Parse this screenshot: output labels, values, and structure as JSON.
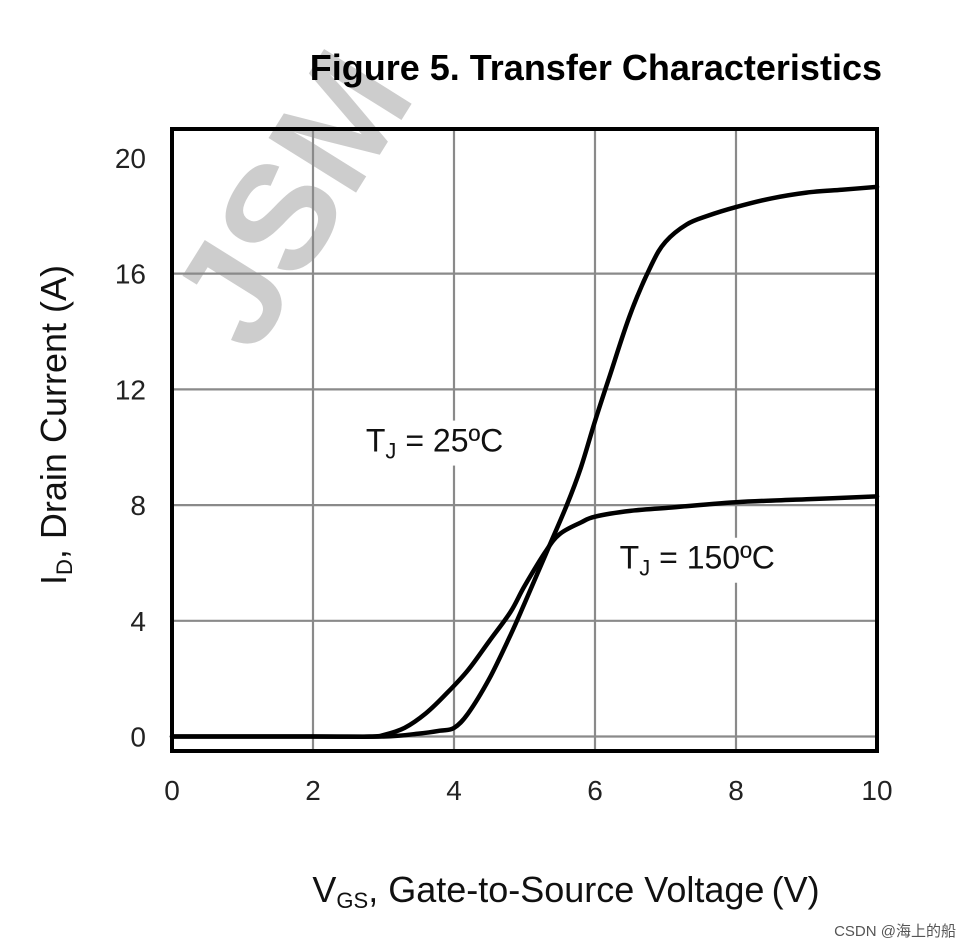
{
  "chart_data": {
    "type": "line",
    "title": "Figure 5. Transfer Characteristics",
    "xlabel": {
      "main": "V",
      "sub": "GS",
      "rest": ", Gate-to-Source Voltage (V)"
    },
    "ylabel": {
      "main": "I",
      "sub": "D",
      "rest": ", Drain Current (A)"
    },
    "xlim": [
      0,
      10
    ],
    "ylim": [
      -0.5,
      21
    ],
    "x_ticks": [
      0,
      2,
      4,
      6,
      8,
      10
    ],
    "y_ticks": [
      0,
      4,
      8,
      12,
      16,
      20
    ],
    "grid": true,
    "series": [
      {
        "name": {
          "main": "T",
          "sub": "J",
          "rest": " = 25ºC"
        },
        "x": [
          0,
          2,
          3.0,
          3.5,
          3.8,
          4.0,
          4.2,
          4.5,
          4.8,
          5.0,
          5.3,
          5.6,
          5.8,
          6.0,
          6.2,
          6.5,
          6.8,
          7.0,
          7.3,
          7.6,
          8.0,
          8.5,
          9.0,
          9.5,
          10.0
        ],
        "y": [
          0,
          0,
          0,
          0.1,
          0.2,
          0.3,
          0.8,
          2.0,
          3.5,
          4.6,
          6.3,
          8.0,
          9.3,
          10.9,
          12.4,
          14.6,
          16.3,
          17.1,
          17.7,
          18.0,
          18.3,
          18.6,
          18.8,
          18.9,
          19.0
        ]
      },
      {
        "name": {
          "main": "T",
          "sub": "J",
          "rest": " = 150ºC"
        },
        "x": [
          0,
          2,
          2.8,
          3.0,
          3.3,
          3.6,
          3.9,
          4.2,
          4.5,
          4.8,
          5.0,
          5.3,
          5.5,
          5.8,
          6.0,
          6.5,
          7.0,
          8.0,
          9.0,
          10.0
        ],
        "y": [
          0,
          0,
          0,
          0.05,
          0.3,
          0.8,
          1.5,
          2.3,
          3.3,
          4.3,
          5.2,
          6.4,
          7.0,
          7.4,
          7.6,
          7.8,
          7.9,
          8.1,
          8.2,
          8.3
        ]
      }
    ]
  },
  "watermark": "JSM",
  "credit": "CSDN @海上的船"
}
